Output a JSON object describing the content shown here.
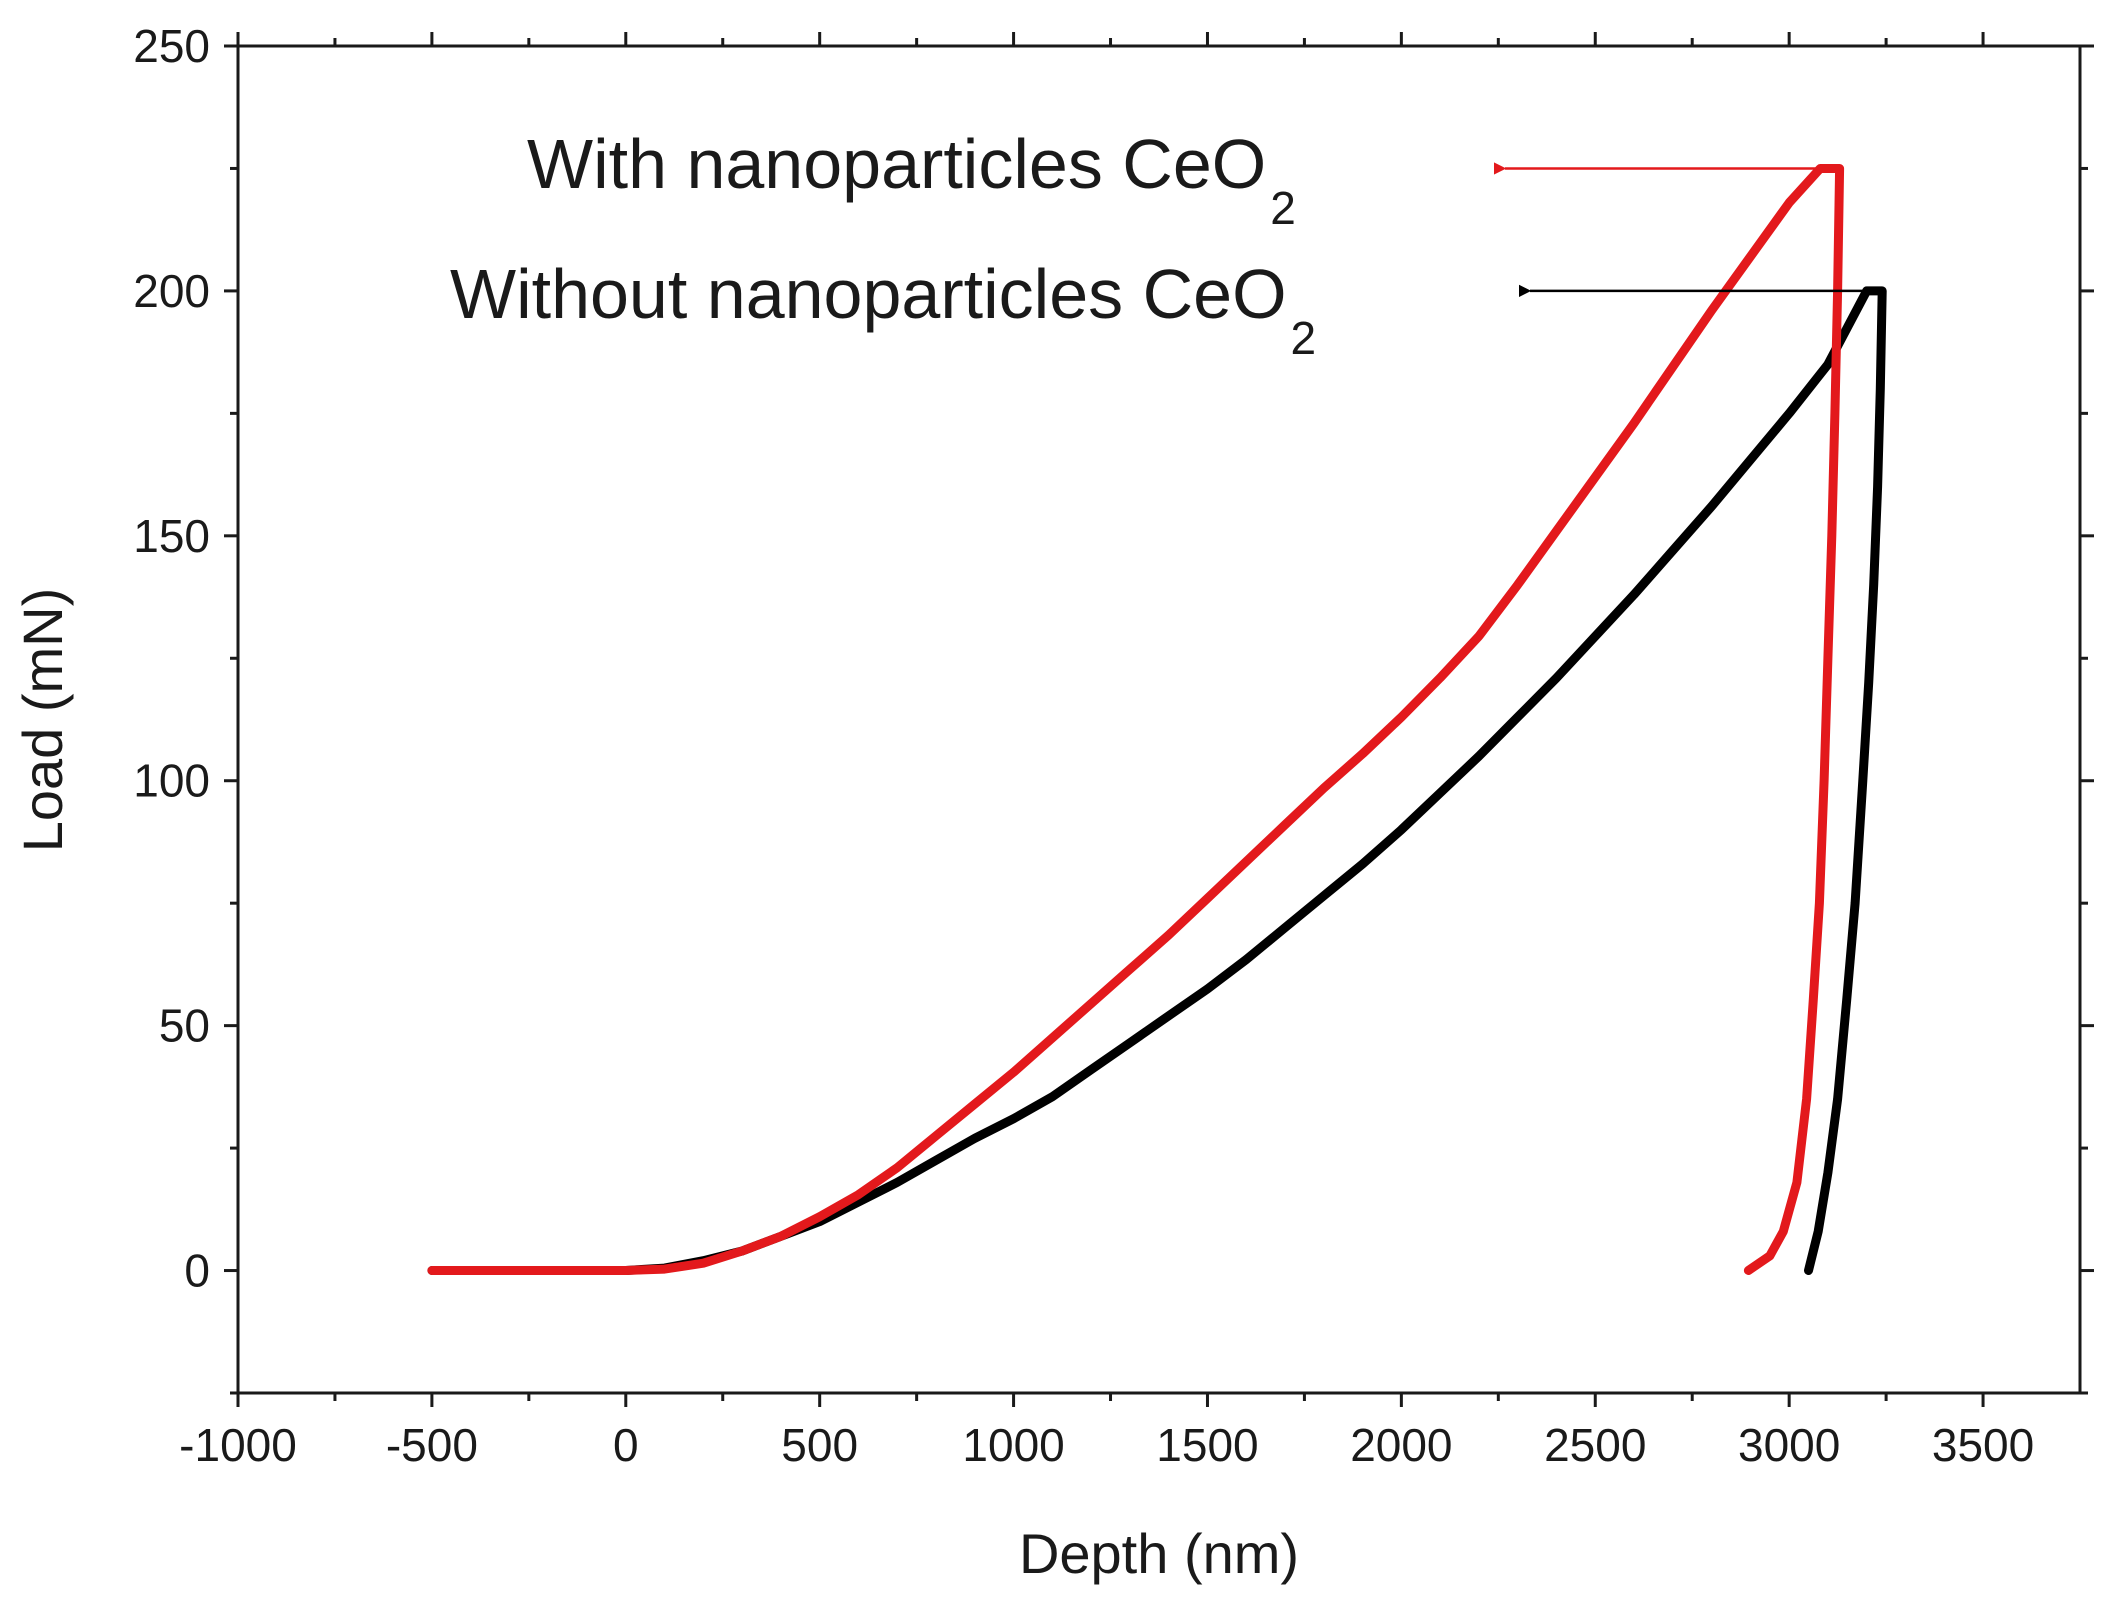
{
  "chart_data": {
    "type": "line",
    "xlabel": "Depth (nm)",
    "ylabel": "Load (mN)",
    "xlim": [
      -1000,
      3750
    ],
    "ylim": [
      -25,
      250
    ],
    "x_ticks": [
      -1000,
      -500,
      0,
      500,
      1000,
      1500,
      2000,
      2500,
      3000,
      3500
    ],
    "y_ticks": [
      0,
      50,
      100,
      150,
      200,
      250
    ],
    "x_tick_labels": [
      "-1000",
      "-500",
      "0",
      "500",
      "1000",
      "1500",
      "2000",
      "2500",
      "3000",
      "3500"
    ],
    "y_tick_labels": [
      "0",
      "50",
      "100",
      "150",
      "200",
      "250"
    ],
    "grid": false,
    "series": [
      {
        "name": "Without nanoparticles CeO2",
        "color": "#000000",
        "loading": {
          "x": [
            -500,
            -300,
            -100,
            0,
            100,
            200,
            300,
            400,
            500,
            600,
            700,
            800,
            900,
            1000,
            1100,
            1200,
            1300,
            1400,
            1500,
            1600,
            1700,
            1800,
            1900,
            2000,
            2100,
            2200,
            2300,
            2400,
            2500,
            2600,
            2700,
            2800,
            2900,
            3000,
            3100,
            3200
          ],
          "y": [
            0,
            0,
            0,
            0,
            0.5,
            2,
            4,
            7,
            10,
            14,
            18,
            22.5,
            27,
            31,
            35.5,
            41,
            46.5,
            52,
            57.5,
            63.5,
            70,
            76.5,
            83,
            90,
            97.5,
            105,
            113,
            121,
            129.5,
            138,
            147,
            156,
            165.5,
            175,
            185,
            200
          ]
        },
        "unloading": {
          "x": [
            3240,
            3235,
            3228,
            3218,
            3205,
            3190,
            3170,
            3148,
            3125,
            3100,
            3075,
            3050
          ],
          "y": [
            200,
            180,
            160,
            140,
            120,
            100,
            75,
            55,
            35,
            20,
            8,
            0
          ]
        },
        "label": "Without nanoparticles CeO",
        "label_subscript": "2",
        "arrow_at": {
          "x": 3200,
          "y": 200
        }
      },
      {
        "name": "With nanoparticles CeO2",
        "color": "#e3191c",
        "loading": {
          "x": [
            -500,
            -300,
            -100,
            0,
            100,
            200,
            300,
            400,
            500,
            600,
            700,
            800,
            900,
            1000,
            1100,
            1200,
            1300,
            1400,
            1500,
            1600,
            1700,
            1800,
            1900,
            2000,
            2100,
            2200,
            2300,
            2400,
            2500,
            2600,
            2700,
            2800,
            2900,
            3000,
            3080
          ],
          "y": [
            0,
            0,
            0,
            0,
            0.3,
            1.5,
            4,
            7,
            11,
            15.5,
            21,
            27.5,
            34,
            40.5,
            47.5,
            54.5,
            61.5,
            68.5,
            76,
            83.5,
            91,
            98.5,
            105.5,
            113,
            121,
            129.5,
            140,
            151,
            162,
            173,
            184.5,
            196,
            207,
            218,
            225
          ]
        },
        "unloading": {
          "x": [
            3130,
            3125,
            3118,
            3110,
            3100,
            3090,
            3078,
            3062,
            3045,
            3020,
            2985,
            2950,
            2895
          ],
          "y": [
            225,
            200,
            175,
            150,
            125,
            100,
            75,
            55,
            35,
            18,
            8,
            3,
            0
          ]
        },
        "label": "With nanoparticles CeO",
        "label_subscript": "2",
        "arrow_at": {
          "x": 3080,
          "y": 225
        }
      }
    ]
  }
}
